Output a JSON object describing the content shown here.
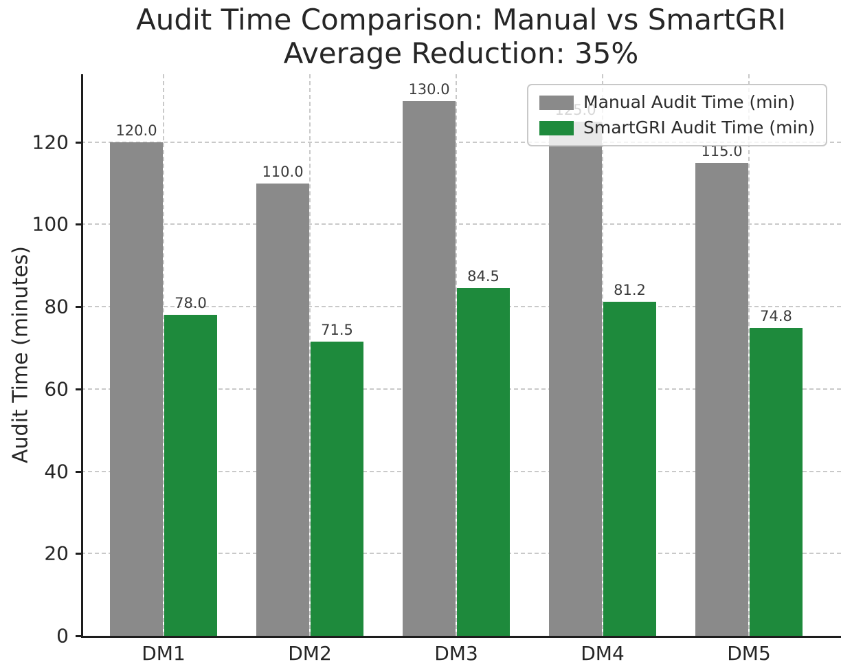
{
  "chart_data": {
    "type": "bar",
    "title": "Audit Time Comparison: Manual vs SmartGRI",
    "subtitle": "Average Reduction: 35%",
    "xlabel": "",
    "ylabel": "Audit Time (minutes)",
    "categories": [
      "DM1",
      "DM2",
      "DM3",
      "DM4",
      "DM5"
    ],
    "series": [
      {
        "name": "Manual Audit Time (min)",
        "color": "#8a8a8a",
        "values": [
          120.0,
          110.0,
          130.0,
          125.0,
          115.0
        ],
        "value_labels": [
          "120.0",
          "110.0",
          "130.0",
          "125.0",
          "115.0"
        ]
      },
      {
        "name": "SmartGRI Audit Time (min)",
        "color": "#1e8a3c",
        "values": [
          78.0,
          71.5,
          84.5,
          81.2,
          74.8
        ],
        "value_labels": [
          "78.0",
          "71.5",
          "84.5",
          "81.2",
          "74.8"
        ]
      }
    ],
    "yticks": [
      0,
      20,
      40,
      60,
      80,
      100,
      120
    ],
    "ylim": [
      0,
      136.5
    ],
    "grid": "dashed horizontal at y-ticks and dashed vertical at category centers",
    "legend_position": "upper right",
    "legend_framealpha": 0.8,
    "bar_value_labels_shown": true
  }
}
